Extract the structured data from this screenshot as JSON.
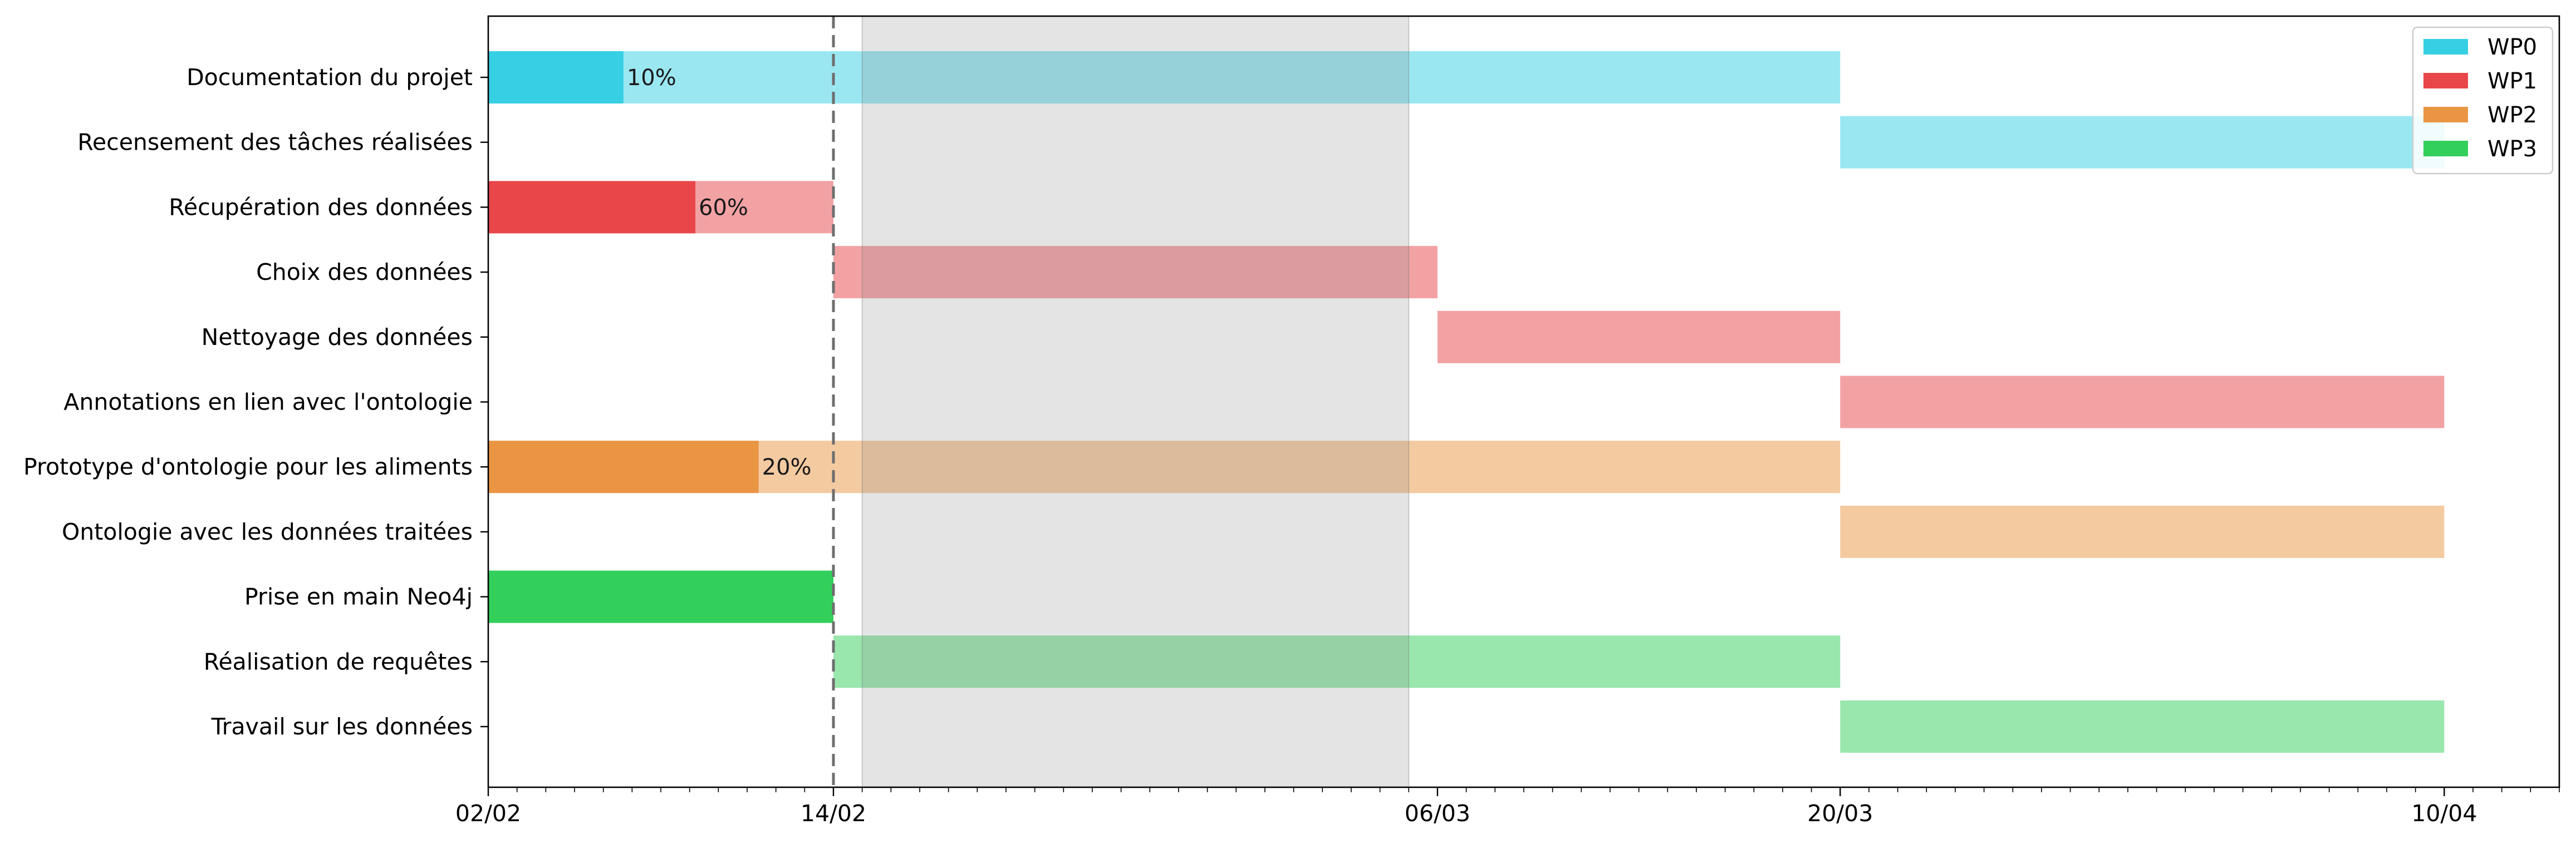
{
  "chart_data": {
    "type": "gantt",
    "x_axis": {
      "start": "02/02",
      "end": "14/04",
      "tick_labels": [
        "02/02",
        "14/02",
        "06/03",
        "20/03",
        "10/04"
      ],
      "tick_dates": [
        "2024-02-02",
        "2024-02-14",
        "2024-03-06",
        "2024-03-20",
        "2024-04-10"
      ]
    },
    "today": "14/02",
    "shaded_period": {
      "start": "15/02",
      "end": "05/03"
    },
    "legend": {
      "placement": "top-right",
      "entries": [
        {
          "name": "WP0",
          "color": "#36cfe3"
        },
        {
          "name": "WP1",
          "color": "#e84649"
        },
        {
          "name": "WP2",
          "color": "#e99544"
        },
        {
          "name": "WP3",
          "color": "#33cf5b"
        }
      ]
    },
    "tasks": [
      {
        "label": "Documentation du projet",
        "wp": "WP0",
        "start": "2024-02-02",
        "end": "2024-03-20",
        "progress": 10,
        "progress_label": "10%"
      },
      {
        "label": "Recensement des tâches réalisées",
        "wp": "WP0",
        "start": "2024-03-20",
        "end": "2024-04-10",
        "progress": null,
        "progress_label": ""
      },
      {
        "label": "Récupération des données",
        "wp": "WP1",
        "start": "2024-02-02",
        "end": "2024-02-14",
        "progress": 60,
        "progress_label": "60%"
      },
      {
        "label": "Choix des données",
        "wp": "WP1",
        "start": "2024-02-14",
        "end": "2024-03-06",
        "progress": null,
        "progress_label": ""
      },
      {
        "label": "Nettoyage des données",
        "wp": "WP1",
        "start": "2024-03-06",
        "end": "2024-03-20",
        "progress": null,
        "progress_label": ""
      },
      {
        "label": "Annotations en lien avec l'ontologie",
        "wp": "WP1",
        "start": "2024-03-20",
        "end": "2024-04-10",
        "progress": null,
        "progress_label": ""
      },
      {
        "label": "Prototype d'ontologie pour les aliments",
        "wp": "WP2",
        "start": "2024-02-02",
        "end": "2024-03-20",
        "progress": 20,
        "progress_label": "20%"
      },
      {
        "label": "Ontologie avec les données traitées",
        "wp": "WP2",
        "start": "2024-03-20",
        "end": "2024-04-10",
        "progress": null,
        "progress_label": ""
      },
      {
        "label": "Prise en main Neo4j",
        "wp": "WP3",
        "start": "2024-02-02",
        "end": "2024-02-14",
        "progress": 100,
        "progress_label": ""
      },
      {
        "label": "Réalisation de requêtes",
        "wp": "WP3",
        "start": "2024-02-14",
        "end": "2024-03-20",
        "progress": null,
        "progress_label": ""
      },
      {
        "label": "Travail sur les données",
        "wp": "WP3",
        "start": "2024-03-20",
        "end": "2024-04-10",
        "progress": null,
        "progress_label": ""
      }
    ]
  }
}
